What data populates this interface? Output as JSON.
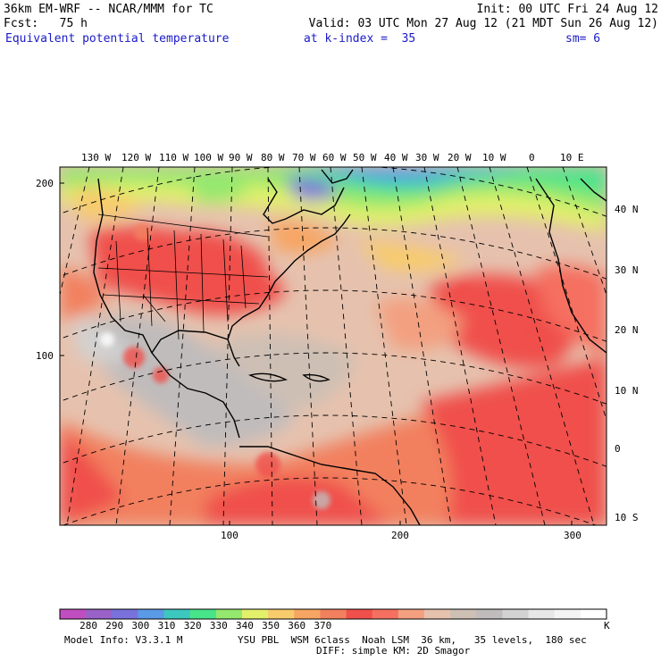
{
  "header": {
    "line1_left": "36km EM-WRF -- NCAR/MMM for TC",
    "line1_right": "Init: 00 UTC Fri 24 Aug 12",
    "line2_left": "Fcst:   75 h",
    "line2_right": "Valid: 03 UTC Mon 27 Aug 12 (21 MDT Sun 26 Aug 12)",
    "line3_field": "Equivalent potential temperature",
    "line3_level": "at k-index =  35",
    "line3_smooth": "sm= 6",
    "text_color": "#1a1ac8"
  },
  "map": {
    "longitude_labels": [
      "130 W",
      "120 W",
      "110 W",
      "100 W",
      "90 W",
      "80 W",
      "70 W",
      "60 W",
      "50 W",
      "40 W",
      "30 W",
      "20 W",
      "10 W",
      "0",
      "10 E"
    ],
    "latitude_labels": [
      "40 N",
      "30 N",
      "20 N",
      "10 N",
      "0",
      "10 S"
    ],
    "grid_y_labels": [
      "200",
      "100"
    ],
    "grid_x_labels": [
      "100",
      "200",
      "300"
    ]
  },
  "colorbar": {
    "colors": [
      "#c04ec0",
      "#9a62c8",
      "#7a72dc",
      "#5a9ae6",
      "#3cc8be",
      "#48e48a",
      "#94e86e",
      "#e2f06a",
      "#f8cc6c",
      "#f7a562",
      "#f2805e",
      "#f0504c",
      "#f57060",
      "#f3a080",
      "#e6c2ae",
      "#cdbfb4",
      "#c0bcbc",
      "#d2d2d2",
      "#e7e7e7",
      "#f4f4f4",
      "#ffffff"
    ],
    "labels": [
      "280",
      "290",
      "300",
      "310",
      "320",
      "330",
      "340",
      "350",
      "360",
      "370"
    ],
    "unit": "K"
  },
  "footer": {
    "model_info": "Model Info: V3.3.1 M",
    "physics_line1": "YSU PBL  WSM 6class  Noah LSM  36 km,   35 levels,  180 sec",
    "physics_line2": "DIFF: simple KM: 2D Smagor"
  }
}
